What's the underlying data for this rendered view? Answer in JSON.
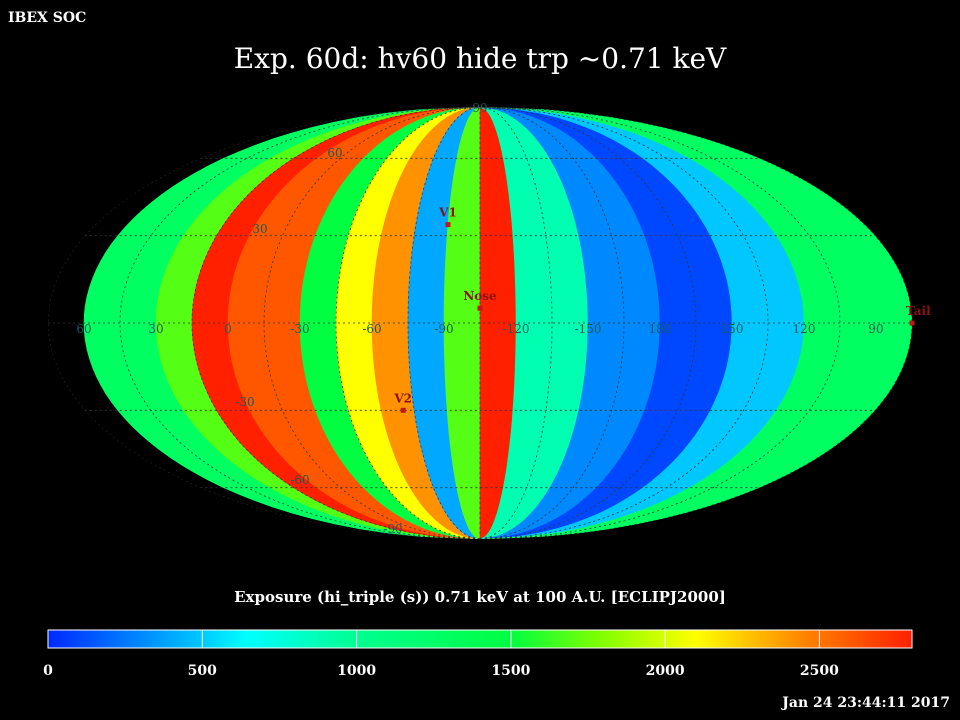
{
  "header": {
    "label": "IBEX SOC",
    "timestamp": "Jan 24 23:44:11 2017"
  },
  "title": "Exp.   60d: hv60 hide trp ~0.71 keV",
  "colorbar": {
    "label": "Exposure (hi_triple (s))  0.71 keV at 100 A.U. [ECLIPJ2000]",
    "min": 0,
    "max": 2800,
    "ticks": [
      "0",
      "500",
      "1000",
      "1500",
      "2000",
      "2500"
    ],
    "tick_values": [
      0,
      500,
      1000,
      1500,
      2000,
      2500
    ]
  },
  "grid_labels": {
    "lat_top": "90",
    "lat_60_north": "60",
    "lat_30_north": "30",
    "lat_30_south": "-30",
    "lat_60_south": "-60",
    "lat_bottom": "-90",
    "lon": [
      "60",
      "30",
      "0",
      "-30",
      "-60",
      "-90",
      "-120",
      "-150",
      "180",
      "150",
      "120",
      "90"
    ]
  },
  "markers": [
    {
      "name": "V1",
      "lon": -90,
      "lat": 34
    },
    {
      "name": "Nose",
      "lon": -105,
      "lat": 5
    },
    {
      "name": "V2",
      "lon": -70,
      "lat": -30
    },
    {
      "name": "Tail",
      "lon": 75,
      "lat": 0
    }
  ],
  "chart_data": {
    "type": "heatmap",
    "projection": "mollweide",
    "x_axis": "ecliptic longitude (deg)",
    "y_axis": "ecliptic latitude (deg)",
    "value_range": [
      0,
      2800
    ],
    "column_order_left_to_right": "60 to 75 deg (decreasing longitude)",
    "columns_approx": [
      {
        "lon_range": [
          60,
          30
        ],
        "value": 1300
      },
      {
        "lon_range": [
          30,
          15
        ],
        "value": 1700
      },
      {
        "lon_range": [
          15,
          0
        ],
        "value": 2800
      },
      {
        "lon_range": [
          0,
          -30
        ],
        "value": 2600
      },
      {
        "lon_range": [
          -30,
          -45
        ],
        "value": 1500
      },
      {
        "lon_range": [
          -45,
          -60
        ],
        "value": 2100
      },
      {
        "lon_range": [
          -60,
          -75
        ],
        "value": 2400
      },
      {
        "lon_range": [
          -75,
          -90
        ],
        "value": 400
      },
      {
        "lon_range": [
          -90,
          -105
        ],
        "value": 1700
      },
      {
        "lon_range": [
          -105,
          -120
        ],
        "value": 2800
      },
      {
        "lon_range": [
          -120,
          -150
        ],
        "value": 900
      },
      {
        "lon_range": [
          -150,
          180
        ],
        "value": 300
      },
      {
        "lon_range": [
          180,
          150
        ],
        "value": 100
      },
      {
        "lon_range": [
          150,
          120
        ],
        "value": 500
      },
      {
        "lon_range": [
          120,
          75
        ],
        "value": 1300
      }
    ]
  }
}
